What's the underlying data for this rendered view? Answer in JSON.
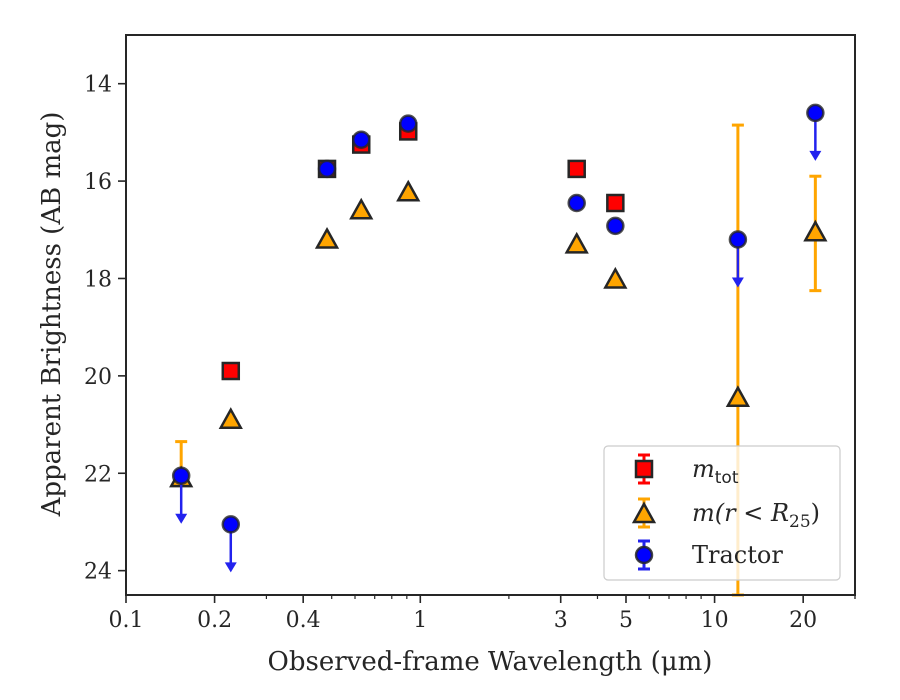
{
  "chart_data": {
    "type": "scatter",
    "title": "",
    "xlabel": "Observed-frame Wavelength (μm)",
    "ylabel": "Apparent Brightness (AB mag)",
    "xscale": "log",
    "xlim": [
      0.1,
      30
    ],
    "ylim": [
      24.5,
      13.0
    ],
    "y_inverted": true,
    "grid": false,
    "legend_position": "lower-right",
    "xticks": [
      {
        "value": 0.1,
        "label": "0.1"
      },
      {
        "value": 0.2,
        "label": "0.2"
      },
      {
        "value": 0.4,
        "label": "0.4"
      },
      {
        "value": 1,
        "label": "1"
      },
      {
        "value": 3,
        "label": "3"
      },
      {
        "value": 5,
        "label": "5"
      },
      {
        "value": 10,
        "label": "10"
      },
      {
        "value": 20,
        "label": "20"
      }
    ],
    "yticks": [
      {
        "value": 14,
        "label": "14"
      },
      {
        "value": 16,
        "label": "16"
      },
      {
        "value": 18,
        "label": "18"
      },
      {
        "value": 20,
        "label": "20"
      },
      {
        "value": 22,
        "label": "22"
      },
      {
        "value": 24,
        "label": "24"
      }
    ],
    "legend": {
      "m_tot_main": "m",
      "m_tot_sub": "tot",
      "m_r_main": "m(r < R",
      "m_r_sub": "25",
      "m_r_close": ")",
      "tractor": "Tractor"
    },
    "series": [
      {
        "key": "m_tot",
        "marker": "square",
        "color": "#ff0000",
        "edge_color": "#262626",
        "points": [
          {
            "x": 0.227,
            "y": 19.9
          },
          {
            "x": 0.482,
            "y": 15.75
          },
          {
            "x": 0.63,
            "y": 15.25
          },
          {
            "x": 0.91,
            "y": 14.98
          },
          {
            "x": 3.4,
            "y": 15.75
          },
          {
            "x": 4.6,
            "y": 16.45
          }
        ]
      },
      {
        "key": "m_r25",
        "marker": "triangle",
        "color": "#ffa500",
        "edge_color": "#262626",
        "points": [
          {
            "x": 0.154,
            "y": 22.1,
            "yerr_low": 21.35,
            "yerr_high": 22.1
          },
          {
            "x": 0.227,
            "y": 20.9
          },
          {
            "x": 0.482,
            "y": 17.2
          },
          {
            "x": 0.63,
            "y": 16.6
          },
          {
            "x": 0.91,
            "y": 16.23
          },
          {
            "x": 3.4,
            "y": 17.3
          },
          {
            "x": 4.6,
            "y": 18.02
          },
          {
            "x": 12.0,
            "y": 20.45,
            "yerr_low": 14.85,
            "yerr_high": 24.5
          },
          {
            "x": 22.0,
            "y": 17.05,
            "yerr_low": 15.9,
            "yerr_high": 18.25
          }
        ]
      },
      {
        "key": "tractor",
        "marker": "circle",
        "color": "#0000ff",
        "edge_color": "#262626",
        "points": [
          {
            "x": 0.154,
            "y": 22.05,
            "upper_limit": true
          },
          {
            "x": 0.227,
            "y": 23.05,
            "upper_limit": true
          },
          {
            "x": 0.482,
            "y": 15.75
          },
          {
            "x": 0.63,
            "y": 15.15
          },
          {
            "x": 0.91,
            "y": 14.82
          },
          {
            "x": 3.4,
            "y": 16.45
          },
          {
            "x": 4.6,
            "y": 16.92
          },
          {
            "x": 12.0,
            "y": 17.2,
            "upper_limit": true
          },
          {
            "x": 22.0,
            "y": 14.6,
            "upper_limit": true
          }
        ]
      }
    ],
    "colors": {
      "axis": "#262626",
      "legend_edge": "#cccccc",
      "mtot_err": "#ff0000",
      "mr_err": "#ffa500",
      "tractor_err": "#2222ee"
    }
  }
}
